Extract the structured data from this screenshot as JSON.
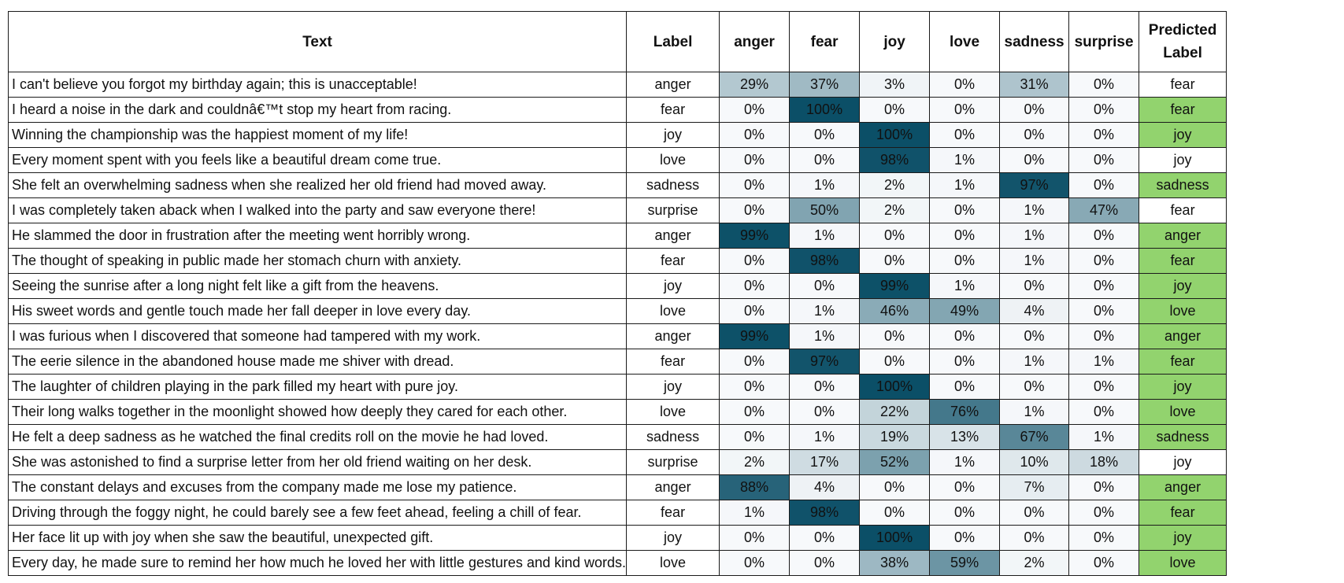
{
  "table": {
    "headers": [
      "Text",
      "Label",
      "anger",
      "fear",
      "joy",
      "love",
      "sadness",
      "surprise",
      "Predicted Label"
    ],
    "emotions": [
      "anger",
      "fear",
      "joy",
      "love",
      "sadness",
      "surprise"
    ],
    "rows": [
      {
        "text": "I can't believe you forgot my birthday again; this is unacceptable!",
        "label": "anger",
        "probs": [
          29,
          37,
          3,
          0,
          31,
          0
        ],
        "predicted": "fear"
      },
      {
        "text": "I heard a noise in the dark and couldnâ€™t stop my heart from racing.",
        "label": "fear",
        "probs": [
          0,
          100,
          0,
          0,
          0,
          0
        ],
        "predicted": "fear"
      },
      {
        "text": "Winning the championship was the happiest moment of my life!",
        "label": "joy",
        "probs": [
          0,
          0,
          100,
          0,
          0,
          0
        ],
        "predicted": "joy"
      },
      {
        "text": "Every moment spent with you feels like a beautiful dream come true.",
        "label": "love",
        "probs": [
          0,
          0,
          98,
          1,
          0,
          0
        ],
        "predicted": "joy"
      },
      {
        "text": "She felt an overwhelming sadness when she realized her old friend had moved away.",
        "label": "sadness",
        "probs": [
          0,
          1,
          2,
          1,
          97,
          0
        ],
        "predicted": "sadness"
      },
      {
        "text": "I was completely taken aback when I walked into the party and saw everyone there!",
        "label": "surprise",
        "probs": [
          0,
          50,
          2,
          0,
          1,
          47
        ],
        "predicted": "fear"
      },
      {
        "text": "He slammed the door in frustration after the meeting went horribly wrong.",
        "label": "anger",
        "probs": [
          99,
          1,
          0,
          0,
          1,
          0
        ],
        "predicted": "anger"
      },
      {
        "text": "The thought of speaking in public made her stomach churn with anxiety.",
        "label": "fear",
        "probs": [
          0,
          98,
          0,
          0,
          1,
          0
        ],
        "predicted": "fear"
      },
      {
        "text": "Seeing the sunrise after a long night felt like a gift from the heavens.",
        "label": "joy",
        "probs": [
          0,
          0,
          99,
          1,
          0,
          0
        ],
        "predicted": "joy"
      },
      {
        "text": "His sweet words and gentle touch made her fall deeper in love every day.",
        "label": "love",
        "probs": [
          0,
          1,
          46,
          49,
          4,
          0
        ],
        "predicted": "love"
      },
      {
        "text": "I was furious when I discovered that someone had tampered with my work.",
        "label": "anger",
        "probs": [
          99,
          1,
          0,
          0,
          0,
          0
        ],
        "predicted": "anger"
      },
      {
        "text": "The eerie silence in the abandoned house made me shiver with dread.",
        "label": "fear",
        "probs": [
          0,
          97,
          0,
          0,
          1,
          1
        ],
        "predicted": "fear"
      },
      {
        "text": "The laughter of children playing in the park filled my heart with pure joy.",
        "label": "joy",
        "probs": [
          0,
          0,
          100,
          0,
          0,
          0
        ],
        "predicted": "joy"
      },
      {
        "text": "Their long walks together in the moonlight showed how deeply they cared for each other.",
        "label": "love",
        "probs": [
          0,
          0,
          22,
          76,
          1,
          0
        ],
        "predicted": "love"
      },
      {
        "text": "He felt a deep sadness as he watched the final credits roll on the movie he had loved.",
        "label": "sadness",
        "probs": [
          0,
          1,
          19,
          13,
          67,
          1
        ],
        "predicted": "sadness"
      },
      {
        "text": "She was astonished to find a surprise letter from her old friend waiting on her desk.",
        "label": "surprise",
        "probs": [
          2,
          17,
          52,
          1,
          10,
          18
        ],
        "predicted": "joy"
      },
      {
        "text": "The constant delays and excuses from the company made me lose my patience.",
        "label": "anger",
        "probs": [
          88,
          4,
          0,
          0,
          7,
          0
        ],
        "predicted": "anger"
      },
      {
        "text": "Driving through the foggy night, he could barely see a few feet ahead, feeling a chill of fear.",
        "label": "fear",
        "probs": [
          1,
          98,
          0,
          0,
          0,
          0
        ],
        "predicted": "fear"
      },
      {
        "text": "Her face lit up with joy when she saw the beautiful, unexpected gift.",
        "label": "joy",
        "probs": [
          0,
          0,
          100,
          0,
          0,
          0
        ],
        "predicted": "joy"
      },
      {
        "text": "Every day, he made sure to remind her how much he loved her with little gestures and kind words.",
        "label": "love",
        "probs": [
          0,
          0,
          38,
          59,
          2,
          0
        ],
        "predicted": "love"
      }
    ]
  },
  "colors": {
    "heat_low": "#f7f9fb",
    "heat_high": "#0b4f67",
    "match_fill": "#92d36e",
    "border": "#1a1a1a"
  },
  "chart_data": {
    "type": "heatmap",
    "x": [
      "anger",
      "fear",
      "joy",
      "love",
      "sadness",
      "surprise"
    ],
    "value_format": "percent",
    "value_range": [
      0,
      100
    ],
    "highlight_rule": "Predicted Label cell filled green when it equals Label"
  }
}
